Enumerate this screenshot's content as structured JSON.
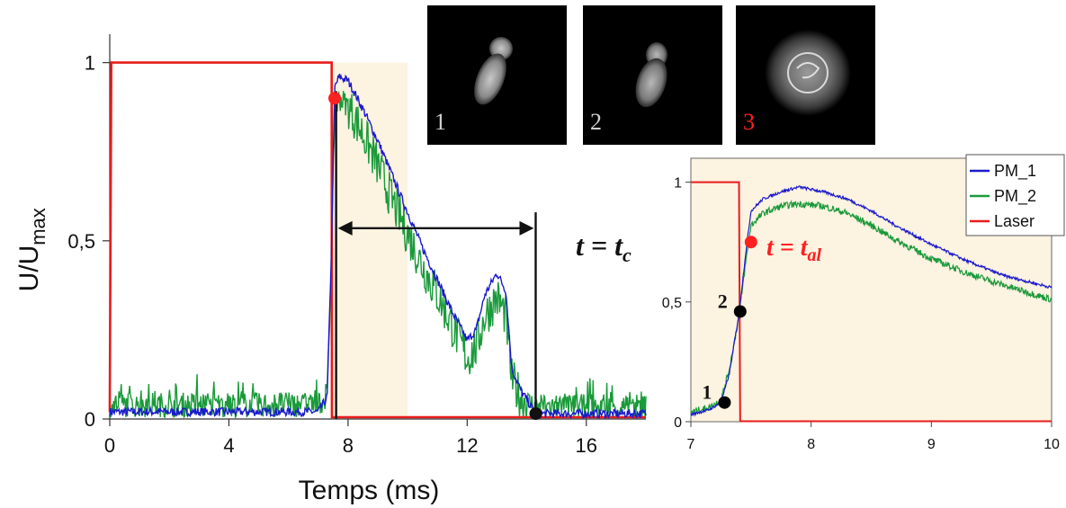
{
  "chart_data": [
    {
      "type": "line",
      "xlabel": "Temps (ms)",
      "ylabel_main": "U/U",
      "ylabel_sub": "max",
      "xlim": [
        0,
        18
      ],
      "ylim": [
        0,
        1.1
      ],
      "xticks": [
        0,
        4,
        8,
        12,
        16
      ],
      "xtick_labels": [
        "0",
        "4",
        "8",
        "12",
        "16"
      ],
      "yticks": [
        0,
        0.5,
        1
      ],
      "ytick_labels": [
        "0",
        "0,5",
        "1"
      ],
      "shaded_region": [
        7.4,
        10
      ],
      "annotation_label": "t = t",
      "annotation_sub": "c",
      "annotation_x_range": [
        7.6,
        14.3
      ],
      "annotation_y": 0.5,
      "marker_red": {
        "x": 7.55,
        "y": 0.9
      },
      "marker_black": {
        "x": 14.3,
        "y": 0.015
      },
      "series": [
        {
          "name": "PM_1",
          "color": "#1a1acc",
          "x": [
            0,
            7.0,
            7.3,
            7.45,
            7.55,
            7.7,
            8.0,
            8.5,
            9.0,
            9.5,
            10.0,
            10.5,
            11.0,
            11.5,
            12.0,
            12.3,
            12.6,
            13.0,
            13.3,
            13.5,
            13.8,
            14.3,
            18
          ],
          "y": [
            0.02,
            0.02,
            0.06,
            0.5,
            0.93,
            0.96,
            0.95,
            0.87,
            0.78,
            0.68,
            0.58,
            0.48,
            0.39,
            0.3,
            0.22,
            0.25,
            0.35,
            0.41,
            0.36,
            0.14,
            0.08,
            0.015,
            0.015
          ]
        },
        {
          "name": "PM_2",
          "color": "#1a9a3a",
          "x": [
            0,
            7.0,
            7.3,
            7.45,
            7.55,
            7.7,
            8.0,
            8.5,
            9.0,
            9.5,
            10.0,
            10.5,
            11.0,
            11.5,
            12.0,
            12.3,
            12.6,
            13.0,
            13.3,
            13.5,
            13.8,
            14.3,
            18
          ],
          "y": [
            0.04,
            0.04,
            0.07,
            0.48,
            0.86,
            0.9,
            0.88,
            0.8,
            0.71,
            0.61,
            0.52,
            0.43,
            0.35,
            0.26,
            0.17,
            0.2,
            0.29,
            0.34,
            0.29,
            0.11,
            0.06,
            0.035,
            0.035
          ]
        },
        {
          "name": "Laser",
          "color": "#e81c1c",
          "x": [
            0,
            0.05,
            7.45,
            7.46,
            18
          ],
          "y": [
            0.02,
            1,
            1,
            0.005,
            0.005
          ]
        }
      ]
    },
    {
      "type": "line",
      "xlim": [
        7,
        10
      ],
      "ylim": [
        0,
        1.1
      ],
      "xticks": [
        7,
        8,
        9,
        10
      ],
      "xtick_labels": [
        "7",
        "8",
        "9",
        "10"
      ],
      "yticks": [
        0,
        0.5,
        1
      ],
      "ytick_labels": [
        "0",
        "0,5",
        "1"
      ],
      "legend": [
        "PM_1",
        "PM_2",
        "Laser"
      ],
      "legend_position": "top-right",
      "annotation_label": "t = t",
      "annotation_sub": "al",
      "points": [
        {
          "label": "1",
          "x": 7.28,
          "y": 0.08,
          "color": "#000000"
        },
        {
          "label": "2",
          "x": 7.41,
          "y": 0.46,
          "color": "#000000"
        },
        {
          "label": "",
          "x": 7.5,
          "y": 0.75,
          "color": "#ff2020"
        }
      ],
      "series": [
        {
          "name": "PM_1",
          "color": "#1a1acc",
          "x": [
            7.0,
            7.15,
            7.25,
            7.32,
            7.4,
            7.46,
            7.5,
            7.6,
            7.75,
            7.9,
            8.1,
            8.3,
            8.5,
            8.7,
            9.0,
            9.3,
            9.6,
            10.0
          ],
          "y": [
            0.03,
            0.05,
            0.08,
            0.2,
            0.45,
            0.72,
            0.88,
            0.93,
            0.96,
            0.98,
            0.96,
            0.93,
            0.88,
            0.82,
            0.74,
            0.67,
            0.61,
            0.56
          ]
        },
        {
          "name": "PM_2",
          "color": "#1a9a3a",
          "x": [
            7.0,
            7.15,
            7.25,
            7.32,
            7.4,
            7.46,
            7.5,
            7.6,
            7.75,
            7.9,
            8.1,
            8.3,
            8.5,
            8.7,
            9.0,
            9.3,
            9.6,
            10.0
          ],
          "y": [
            0.04,
            0.06,
            0.09,
            0.22,
            0.44,
            0.68,
            0.82,
            0.87,
            0.9,
            0.91,
            0.9,
            0.87,
            0.82,
            0.76,
            0.68,
            0.62,
            0.57,
            0.51
          ]
        },
        {
          "name": "Laser",
          "color": "#e81c1c",
          "x": [
            7.0,
            7.4,
            7.41,
            10.0
          ],
          "y": [
            1,
            1,
            0.002,
            0.002
          ]
        }
      ]
    }
  ],
  "thumbnails": [
    {
      "label": "1"
    },
    {
      "label": "2"
    },
    {
      "label": "3"
    }
  ],
  "colors": {
    "shade": "#fdf3e1",
    "accent_red": "#ff2020"
  }
}
